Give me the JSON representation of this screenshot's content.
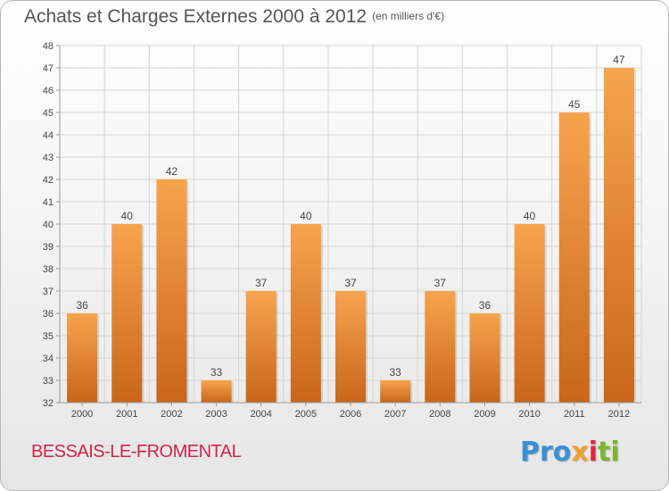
{
  "header": {
    "title": "Achats et Charges Externes 2000 à 2012",
    "unit": "(en milliers d'€)"
  },
  "footer": {
    "commune": "BESSAIS-LE-FROMENTAL",
    "logo": [
      "Pro",
      "x",
      "i",
      "ti"
    ]
  },
  "colors": {
    "bar_light": "#f7a44e",
    "bar_dark": "#c8661a",
    "grid": "#d5d5d5",
    "axis": "#9a9a9a",
    "text": "#444444"
  },
  "chart_data": {
    "type": "bar",
    "title": "Achats et Charges Externes 2000 à 2012",
    "subtitle": "(en milliers d'€)",
    "xlabel": "",
    "ylabel": "",
    "categories": [
      "2000",
      "2001",
      "2002",
      "2003",
      "2004",
      "2005",
      "2006",
      "2007",
      "2008",
      "2009",
      "2010",
      "2011",
      "2012"
    ],
    "values": [
      36,
      40,
      42,
      33,
      37,
      40,
      37,
      33,
      37,
      36,
      40,
      45,
      47
    ],
    "ylim": [
      32,
      48
    ],
    "yticks": [
      32,
      33,
      34,
      35,
      36,
      37,
      38,
      39,
      40,
      41,
      42,
      43,
      44,
      45,
      46,
      47,
      48
    ],
    "grid": true,
    "legend": "none"
  }
}
